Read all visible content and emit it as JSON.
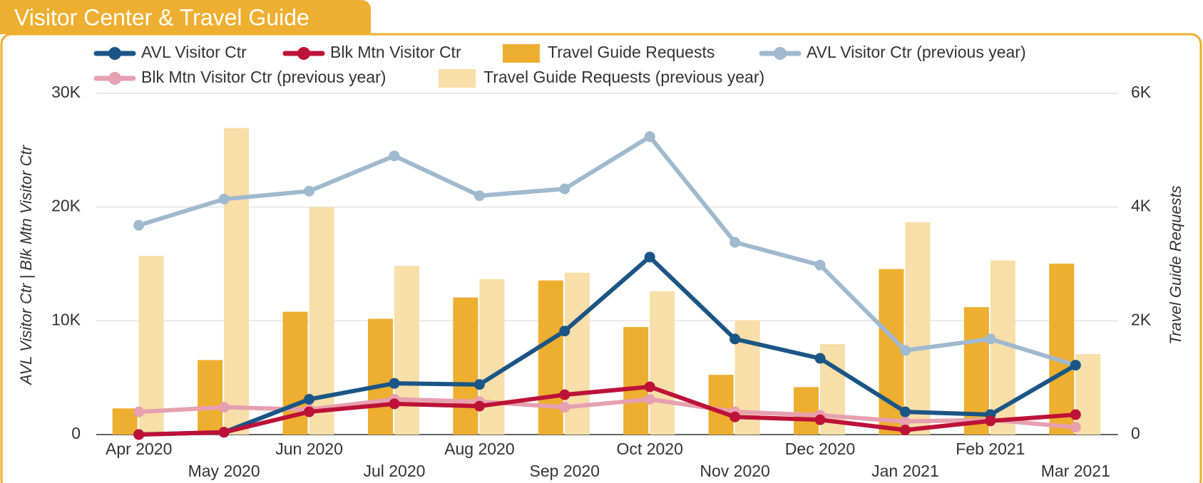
{
  "chart_data": {
    "type": "combo",
    "title": "Visitor Center & Travel Guide",
    "categories": [
      "Apr 2020",
      "May 2020",
      "Jun 2020",
      "Jul 2020",
      "Aug 2020",
      "Sep 2020",
      "Oct 2020",
      "Nov 2020",
      "Dec 2020",
      "Jan 2021",
      "Feb 2021",
      "Mar 2021"
    ],
    "y_label": "AVL Visitor Ctr | Blk Mtn Visitor Ctr",
    "y2_label": "Travel Guide Requests",
    "ylim": [
      0,
      30000
    ],
    "yticks": [
      {
        "value": 0,
        "label": "0"
      },
      {
        "value": 10000,
        "label": "10K"
      },
      {
        "value": 20000,
        "label": "20K"
      },
      {
        "value": 30000,
        "label": "30K"
      }
    ],
    "y2lim": [
      0,
      6000
    ],
    "y2ticks": [
      {
        "value": 0,
        "label": "0"
      },
      {
        "value": 2000,
        "label": "2K"
      },
      {
        "value": 4000,
        "label": "4K"
      },
      {
        "value": 6000,
        "label": "6K"
      }
    ],
    "grid": true,
    "series": [
      {
        "name": "AVL Visitor Ctr",
        "kind": "line",
        "color": "#1b5585",
        "values": [
          0,
          200,
          3100,
          4500,
          4400,
          9100,
          15600,
          8400,
          6700,
          2000,
          1750,
          6100
        ]
      },
      {
        "name": "Blk Mtn Visitor Ctr",
        "kind": "line",
        "color": "#bd1238",
        "values": [
          0,
          200,
          2000,
          2700,
          2500,
          3500,
          4200,
          1550,
          1300,
          400,
          1200,
          1750
        ]
      },
      {
        "name": "Travel Guide Requests",
        "kind": "bar",
        "axis": "y2",
        "color": "#eeae2f",
        "values": [
          460,
          1310,
          2160,
          2035,
          2410,
          2710,
          1890,
          1050,
          835,
          2910,
          2240,
          3005
        ]
      },
      {
        "name": "AVL Visitor Ctr (previous year)",
        "kind": "line",
        "color": "#9fb9cf",
        "values": [
          18400,
          20700,
          21400,
          24500,
          21000,
          21600,
          26200,
          16900,
          14900,
          7400,
          8400,
          6100
        ]
      },
      {
        "name": "Blk Mtn Visitor Ctr (previous year)",
        "kind": "line",
        "color": "#e6a0b0",
        "values": [
          2000,
          2400,
          2200,
          3100,
          2900,
          2400,
          3100,
          2000,
          1700,
          1150,
          1300,
          650
        ]
      },
      {
        "name": "Travel Guide Requests (previous year)",
        "kind": "bar",
        "axis": "y2",
        "color": "#f8dea8",
        "values": [
          3140,
          5390,
          4000,
          2965,
          2735,
          2845,
          2520,
          2010,
          1590,
          3735,
          3060,
          1415
        ]
      }
    ]
  }
}
